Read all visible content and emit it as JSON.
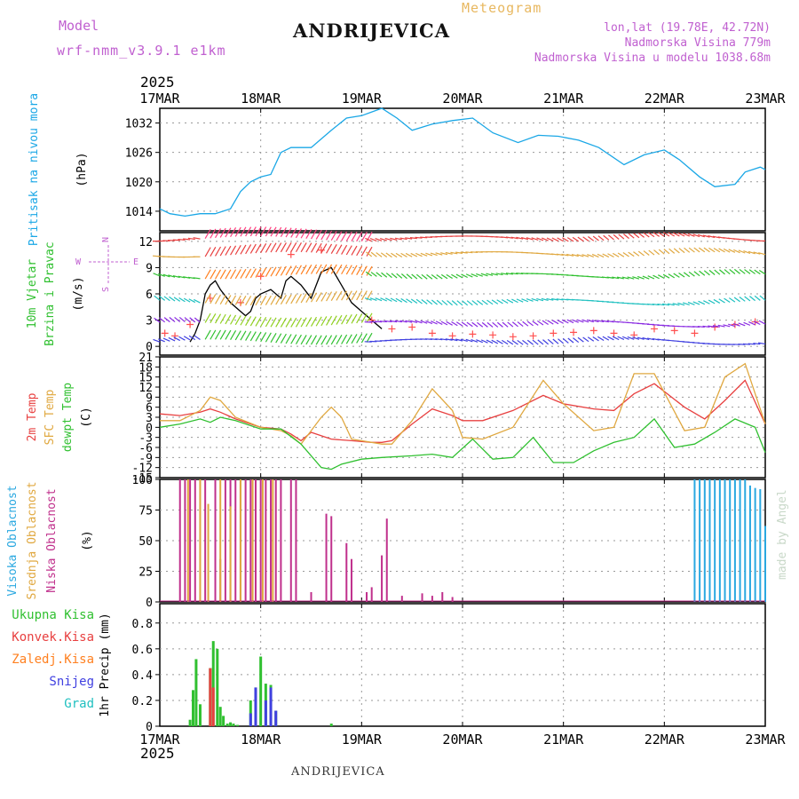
{
  "header": {
    "model_label": "Model",
    "model_name": "wrf-nmm_v3.9.1 e1km",
    "location": "ANDRIJEVICA",
    "title": "Meteogram",
    "lonlat": "lon,lat (19.78E, 42.72N)",
    "elevation": "Nadmorska Visina 779m",
    "model_elevation": "Nadmorska Visina u modelu 1038.68m"
  },
  "footer_location": "ANDRIJEVICA",
  "watermark": "made by Angel",
  "colors": {
    "pressure": "#1aa7e6",
    "temp2m": "#e84040",
    "sfc_temp": "#e0a840",
    "dewpoint": "#30c030",
    "wind_speed": "#000000",
    "gust": "#ff5050",
    "cloud_high": "#2aa8e0",
    "cloud_mid": "#e0a840",
    "cloud_low": "#c0308c",
    "precip_total": "#30c030",
    "precip_conv": "#e84040",
    "precip_frz": "#ff8020",
    "precip_snow": "#4040e0",
    "precip_hail": "#20c0c0"
  },
  "chart_data": [
    {
      "type": "line",
      "panel": "pressure",
      "ylabel_left": "Pritisak na nivou mora",
      "ylabel_right": "(hPa)",
      "x_start_label_year": "2025",
      "x_tick_labels": [
        "17MAR",
        "18MAR",
        "19MAR",
        "20MAR",
        "21MAR",
        "22MAR",
        "23MAR"
      ],
      "xlim_days": [
        0,
        6
      ],
      "ylim": [
        1010,
        1035
      ],
      "y_ticks": [
        1014,
        1020,
        1026,
        1032
      ],
      "grid": true,
      "series": [
        {
          "x": [
            0,
            0.1,
            0.25,
            0.4,
            0.55,
            0.7,
            0.8,
            0.9,
            1.0,
            1.1,
            1.2,
            1.3,
            1.5,
            1.7,
            1.85,
            2.0,
            2.2,
            2.35,
            2.5,
            2.7,
            2.9,
            3.1,
            3.3,
            3.55,
            3.75,
            3.95,
            4.15,
            4.35,
            4.6,
            4.8,
            5.0,
            5.15,
            5.35,
            5.5,
            5.7,
            5.8,
            5.95,
            6.0
          ],
          "y": [
            1014.5,
            1013.5,
            1013,
            1013.5,
            1013.5,
            1014.5,
            1018,
            1020,
            1021,
            1021.5,
            1026,
            1027,
            1027,
            1030.5,
            1033,
            1033.5,
            1035,
            1033,
            1030.5,
            1031.8,
            1032.5,
            1033,
            1030,
            1028,
            1029.5,
            1029.3,
            1028.5,
            1027,
            1023.5,
            1025.5,
            1026.5,
            1024.5,
            1021,
            1019,
            1019.5,
            1022,
            1023,
            1022.5
          ]
        }
      ]
    },
    {
      "type": "line",
      "panel": "wind",
      "ylabel_left": [
        "10m Vjetar",
        "Brzina i Pravac"
      ],
      "ylabel_right": "(m/s)",
      "compass": [
        "N",
        "W",
        "E",
        "S"
      ],
      "ylim": [
        -1,
        13
      ],
      "y_ticks": [
        0,
        3,
        6,
        9,
        12
      ],
      "grid": true,
      "series": [
        {
          "role": "wind_speed",
          "x": [
            0.3,
            0.35,
            0.4,
            0.45,
            0.5,
            0.55,
            0.6,
            0.7,
            0.8,
            0.85,
            0.9,
            0.95,
            1.0,
            1.1,
            1.2,
            1.25,
            1.3,
            1.4,
            1.5,
            1.6,
            1.7,
            1.8,
            1.9,
            2.0,
            2.1,
            2.2
          ],
          "y": [
            0.5,
            1.5,
            3,
            6,
            7,
            7.5,
            6.5,
            5,
            4,
            3.5,
            4,
            5.5,
            6,
            6.5,
            5.5,
            7.5,
            8,
            7,
            5.5,
            8.5,
            9,
            7,
            5,
            4,
            3,
            2
          ]
        },
        {
          "role": "gust_markers",
          "x": [
            0.05,
            0.15,
            0.3,
            0.5,
            0.8,
            1.0,
            1.3,
            1.6,
            2.1,
            2.3,
            2.5,
            2.7,
            2.9,
            3.1,
            3.3,
            3.5,
            3.7,
            3.9,
            4.1,
            4.3,
            4.5,
            4.7,
            4.9,
            5.1,
            5.3,
            5.5,
            5.7,
            5.9
          ],
          "y": [
            1.5,
            1.2,
            2.5,
            5.5,
            5,
            8,
            10.5,
            11,
            3,
            2,
            2.2,
            1.5,
            1.2,
            1.4,
            1.3,
            1.1,
            1.2,
            1.5,
            1.6,
            1.8,
            1.5,
            1.3,
            2,
            1.8,
            1.5,
            2.2,
            2.5,
            2.8
          ]
        }
      ]
    },
    {
      "type": "line",
      "panel": "temperature",
      "ylabel_left": [
        "2m Temp",
        "SFC Temp",
        "dewpt Temp"
      ],
      "ylabel_right": "(C)",
      "ylim": [
        -15,
        21
      ],
      "y_ticks": [
        -15,
        -12,
        -9,
        -6,
        -3,
        0,
        3,
        6,
        9,
        12,
        15,
        18,
        21
      ],
      "grid": true,
      "series": [
        {
          "name": "2m Temp",
          "x": [
            0,
            0.2,
            0.4,
            0.5,
            0.6,
            0.75,
            1.0,
            1.2,
            1.3,
            1.4,
            1.5,
            1.7,
            1.9,
            2.1,
            2.2,
            2.3,
            2.5,
            2.7,
            2.9,
            3.0,
            3.2,
            3.5,
            3.8,
            4.0,
            4.3,
            4.5,
            4.7,
            4.9,
            5.2,
            5.4,
            5.6,
            5.8,
            6.0
          ],
          "y": [
            4,
            3.5,
            4.5,
            5.5,
            4.5,
            2.5,
            0,
            -0.5,
            -2,
            -4,
            -1.5,
            -3.5,
            -4,
            -4.5,
            -4.5,
            -4,
            1,
            5.5,
            3.5,
            2,
            2,
            5,
            9.5,
            7,
            5.5,
            5,
            10,
            13,
            6,
            2.5,
            8,
            14,
            1
          ]
        },
        {
          "name": "SFC Temp",
          "x": [
            0,
            0.2,
            0.4,
            0.5,
            0.6,
            0.75,
            1.0,
            1.2,
            1.3,
            1.4,
            1.5,
            1.6,
            1.7,
            1.8,
            1.9,
            2.1,
            2.2,
            2.3,
            2.5,
            2.7,
            2.9,
            3.0,
            3.2,
            3.5,
            3.8,
            4.0,
            4.3,
            4.5,
            4.7,
            4.9,
            5.2,
            5.4,
            5.6,
            5.8,
            6.0
          ],
          "y": [
            2,
            2,
            5,
            9,
            8,
            3,
            0,
            -1,
            -2.5,
            -5,
            -1,
            3,
            6,
            3,
            -3.5,
            -4.5,
            -5,
            -5,
            2,
            11.5,
            5,
            -3,
            -3.5,
            0,
            14,
            7,
            -1,
            0,
            16,
            16,
            -1,
            0,
            15,
            19,
            1
          ]
        },
        {
          "name": "dewpt Temp",
          "x": [
            0,
            0.2,
            0.4,
            0.5,
            0.6,
            0.75,
            1.0,
            1.2,
            1.4,
            1.6,
            1.7,
            1.8,
            2.0,
            2.2,
            2.5,
            2.7,
            2.9,
            3.1,
            3.3,
            3.5,
            3.7,
            3.9,
            4.1,
            4.3,
            4.5,
            4.7,
            4.9,
            5.1,
            5.3,
            5.5,
            5.7,
            5.9,
            6.0
          ],
          "y": [
            0,
            1,
            2.5,
            1.5,
            3,
            2,
            -0.5,
            -0.5,
            -5,
            -12,
            -12.5,
            -11,
            -9.5,
            -9,
            -8.5,
            -8,
            -9,
            -3.5,
            -9.5,
            -9,
            -3,
            -10.5,
            -10.5,
            -7,
            -4.5,
            -3,
            2.5,
            -6,
            -5,
            -1.5,
            2.5,
            0,
            -7.5
          ]
        }
      ]
    },
    {
      "type": "bar",
      "panel": "cloud",
      "ylabel_left": [
        "Visoka Oblacnost",
        "Srednja Oblacnost",
        "Niska Oblacnost"
      ],
      "ylabel_right": "(%)",
      "ylim": [
        0,
        100
      ],
      "y_ticks": [
        0,
        25,
        50,
        75,
        100
      ],
      "grid": true,
      "series": [
        {
          "name": "Niska Oblacnost",
          "x": [
            0.2,
            0.25,
            0.3,
            0.35,
            0.4,
            0.45,
            0.55,
            0.6,
            0.65,
            0.7,
            0.75,
            0.8,
            0.85,
            0.9,
            0.95,
            1.0,
            1.05,
            1.1,
            1.15,
            1.2,
            1.3,
            1.35,
            1.5,
            1.65,
            1.7,
            1.85,
            1.9,
            2.05,
            2.1,
            2.2,
            2.25,
            2.4,
            2.6,
            2.7,
            2.8,
            2.9
          ],
          "y": [
            100,
            100,
            100,
            100,
            100,
            100,
            100,
            35,
            100,
            100,
            100,
            100,
            100,
            100,
            100,
            100,
            100,
            100,
            100,
            100,
            100,
            100,
            8,
            72,
            70,
            48,
            35,
            8,
            12,
            38,
            68,
            5,
            7,
            5,
            8,
            4
          ]
        },
        {
          "name": "Srednja Oblacnost",
          "x": [
            0.28,
            0.4,
            0.48,
            0.6,
            0.7,
            0.8,
            0.92,
            1.02,
            1.12
          ],
          "y": [
            100,
            100,
            80,
            100,
            78,
            100,
            100,
            100,
            100
          ]
        },
        {
          "name": "Visoka Oblacnost",
          "x": [
            5.3,
            5.35,
            5.4,
            5.45,
            5.5,
            5.55,
            5.6,
            5.65,
            5.7,
            5.75,
            5.8,
            5.85,
            5.9,
            5.95,
            6.0
          ],
          "y": [
            100,
            100,
            100,
            100,
            100,
            100,
            100,
            100,
            100,
            100,
            100,
            95,
            93,
            92,
            62
          ]
        }
      ]
    },
    {
      "type": "bar",
      "panel": "precip",
      "ylabel_left": [
        "Ukupna Kisa",
        "Konvek.Kisa",
        "Zaledj.Kisa",
        "Snijeg",
        "Grad"
      ],
      "ylabel_right": "1hr Precip (mm)",
      "ylim": [
        0,
        0.95
      ],
      "y_ticks": [
        0,
        0.2,
        0.4,
        0.6,
        0.8
      ],
      "grid": true,
      "x_tick_labels_bottom": [
        "17MAR",
        "18MAR",
        "19MAR",
        "20MAR",
        "21MAR",
        "22MAR",
        "23MAR"
      ],
      "x_bottom_year": "2025",
      "series": [
        {
          "name": "Ukupna Kisa",
          "x": [
            0.3,
            0.33,
            0.36,
            0.4,
            0.5,
            0.53,
            0.57,
            0.6,
            0.63,
            0.67,
            0.7,
            0.73,
            0.77,
            0.9,
            0.95,
            1.0,
            1.05,
            1.1,
            1.15,
            1.7
          ],
          "y": [
            0.05,
            0.28,
            0.52,
            0.17,
            0.45,
            0.66,
            0.6,
            0.15,
            0.08,
            0.02,
            0.03,
            0.02,
            0.01,
            0.2,
            0.3,
            0.54,
            0.33,
            0.32,
            0.12,
            0.02
          ]
        },
        {
          "name": "Konvek.Kisa",
          "x": [
            0.5,
            0.53
          ],
          "y": [
            0.45,
            0.3
          ]
        },
        {
          "name": "Snijeg",
          "x": [
            0.9,
            0.95,
            1.05,
            1.1,
            1.15
          ],
          "y": [
            0.1,
            0.3,
            0.2,
            0.3,
            0.12
          ]
        }
      ]
    }
  ]
}
